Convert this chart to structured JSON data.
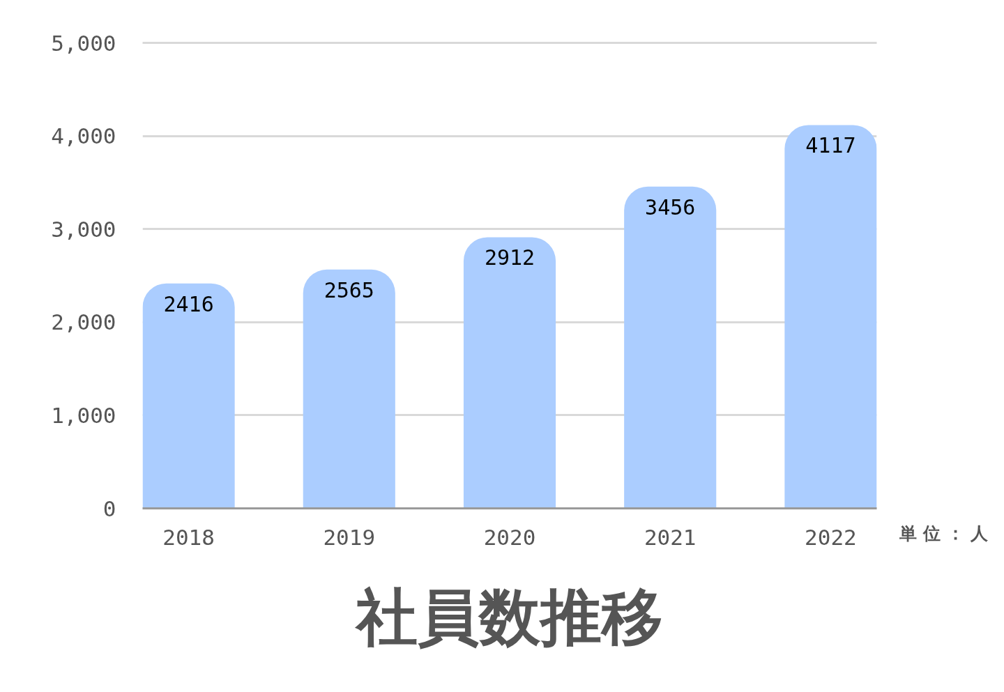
{
  "chart_data": {
    "type": "bar",
    "title": "社員数推移",
    "categories": [
      "2018",
      "2019",
      "2020",
      "2021",
      "2022"
    ],
    "values": [
      2416,
      2565,
      2912,
      3456,
      4117
    ],
    "color": "#abcdff",
    "ylim": [
      0,
      5000
    ],
    "yticks": [
      0,
      {
        "value": 1000,
        "label": "1,000"
      },
      {
        "value": 2000,
        "label": "2,000"
      },
      {
        "value": 3000,
        "label": "3,000"
      },
      {
        "value": 4000,
        "label": "4,000"
      },
      {
        "value": 5000,
        "label": "5,000"
      }
    ],
    "grid": "y",
    "data_labels": true,
    "annotations": [
      "単位：人"
    ]
  }
}
